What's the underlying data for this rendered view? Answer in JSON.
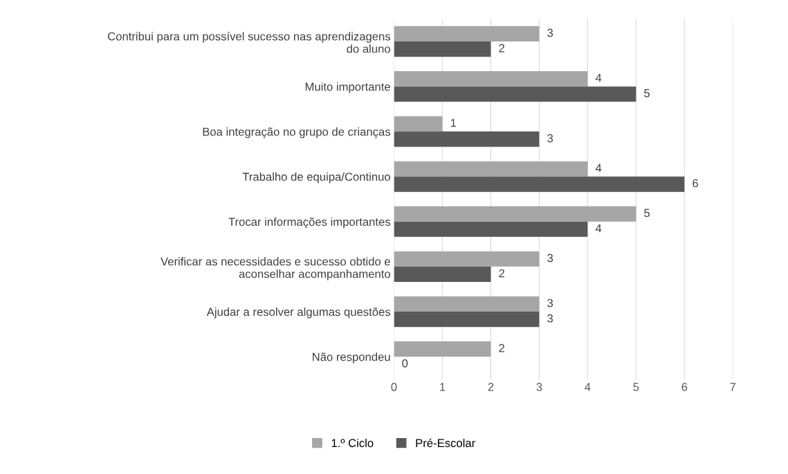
{
  "chart_data": {
    "type": "bar",
    "orientation": "horizontal",
    "categories": [
      "Contribui para um possível sucesso nas aprendizagens\ndo aluno",
      "Muito importante",
      "Boa integração no grupo de crianças",
      "Trabalho de equipa/Continuo",
      "Trocar informações importantes",
      "Verificar as necessidades e sucesso obtido e\naconselhar acompanhamento",
      "Ajudar a resolver algumas questões",
      "Não respondeu"
    ],
    "series": [
      {
        "name": "1.º Ciclo",
        "color": "#a6a6a6",
        "values": [
          3,
          4,
          1,
          4,
          5,
          3,
          3,
          2
        ]
      },
      {
        "name": "Pré-Escolar",
        "color": "#595959",
        "values": [
          2,
          5,
          3,
          6,
          4,
          2,
          3,
          0
        ]
      }
    ],
    "xlim": [
      0,
      7
    ],
    "xticks": [
      0,
      1,
      2,
      3,
      4,
      5,
      6,
      7
    ],
    "grid": "x",
    "legend": "bottom",
    "data_labels": true
  }
}
